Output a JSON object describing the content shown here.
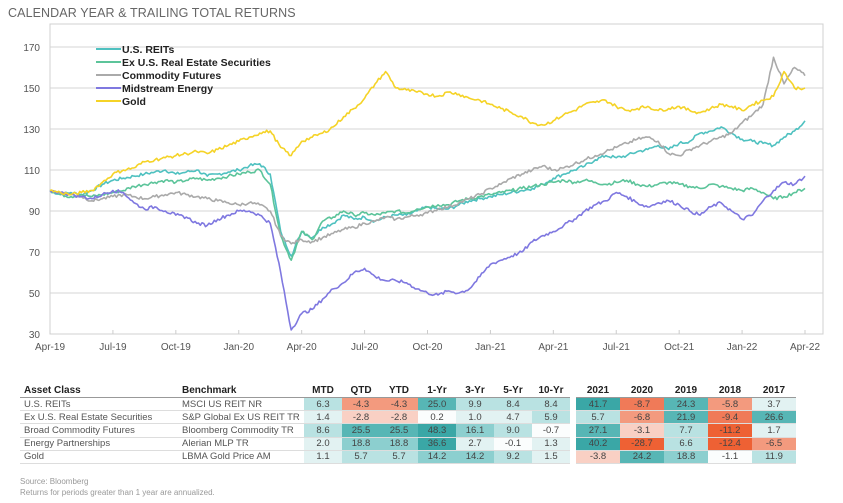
{
  "page": {
    "title": "CALENDAR YEAR & TRAILING TOTAL RETURNS",
    "source": "Source: Bloomberg",
    "note": "Returns for periods greater than 1 year are annualized."
  },
  "chart_data": {
    "type": "line",
    "title": "CALENDAR YEAR & TRAILING TOTAL RETURNS",
    "xlabel": "",
    "ylabel": "",
    "ylim": [
      30,
      175
    ],
    "yticks": [
      30,
      50,
      70,
      90,
      110,
      130,
      150,
      170
    ],
    "xticks": [
      "Apr-19",
      "Jul-19",
      "Oct-19",
      "Jan-20",
      "Apr-20",
      "Jul-20",
      "Oct-20",
      "Jan-21",
      "Apr-21",
      "Jul-21",
      "Oct-21",
      "Jan-22",
      "Apr-22"
    ],
    "grid": true,
    "legend": "top-left",
    "x_months": [
      0,
      0.5,
      1,
      1.5,
      2,
      2.5,
      3,
      3.5,
      4,
      4.5,
      5,
      5.5,
      6,
      6.5,
      7,
      7.5,
      8,
      8.5,
      9,
      9.5,
      10,
      10.5,
      11,
      11.5,
      12,
      12.5,
      13,
      13.5,
      14,
      14.5,
      15,
      15.5,
      16,
      16.5,
      17,
      17.5,
      18,
      18.5,
      19,
      19.5,
      20,
      20.5,
      21,
      21.5,
      22,
      22.5,
      23,
      23.5,
      24,
      24.5,
      25,
      25.5,
      26,
      26.5,
      27,
      27.5,
      28,
      28.5,
      29,
      29.5,
      30,
      30.5,
      31,
      31.5,
      32,
      32.5,
      33,
      33.5,
      34,
      34.5,
      35,
      35.5,
      36
    ],
    "series": [
      {
        "name": "U.S. REITs",
        "color": "#4fc1c0",
        "values": [
          100,
          98,
          99,
          98,
          100,
          103,
          105,
          106,
          107,
          108,
          109,
          110,
          108,
          109,
          110,
          107,
          108,
          109,
          110,
          112,
          113,
          108,
          80,
          68,
          80,
          77,
          82,
          84,
          88,
          86,
          87,
          85,
          87,
          88,
          88,
          90,
          92,
          91,
          91,
          93,
          95,
          96,
          97,
          98,
          99,
          100,
          101,
          103,
          106,
          108,
          110,
          112,
          115,
          117,
          116,
          117,
          119,
          120,
          122,
          120,
          123,
          124,
          128,
          129,
          131,
          128,
          125,
          124,
          123,
          122,
          126,
          129,
          134
        ]
      },
      {
        "name": "Ex U.S. Real Estate Securities",
        "color": "#5cc49a",
        "values": [
          100,
          98,
          97,
          98,
          97,
          98,
          99,
          100,
          102,
          103,
          104,
          105,
          104,
          105,
          106,
          105,
          106,
          107,
          108,
          109,
          110,
          103,
          78,
          66,
          80,
          76,
          85,
          87,
          90,
          88,
          89,
          88,
          89,
          90,
          89,
          91,
          92,
          93,
          93,
          95,
          96,
          97,
          98,
          99,
          100,
          101,
          102,
          103,
          104,
          105,
          104,
          105,
          104,
          103,
          104,
          105,
          103,
          102,
          103,
          104,
          103,
          102,
          101,
          103,
          102,
          101,
          100,
          101,
          99,
          96,
          97,
          99,
          101
        ]
      },
      {
        "name": "Commodity Futures",
        "color": "#aaaaaa",
        "values": [
          100,
          99,
          98,
          97,
          95,
          96,
          97,
          98,
          97,
          96,
          97,
          98,
          99,
          98,
          97,
          96,
          95,
          94,
          93,
          94,
          93,
          90,
          78,
          74,
          76,
          75,
          77,
          79,
          81,
          82,
          84,
          85,
          87,
          86,
          87,
          88,
          89,
          91,
          92,
          94,
          96,
          98,
          101,
          103,
          106,
          108,
          110,
          112,
          110,
          111,
          113,
          115,
          117,
          119,
          121,
          123,
          125,
          126,
          124,
          118,
          117,
          120,
          122,
          124,
          126,
          128,
          133,
          137,
          142,
          165,
          152,
          160,
          156
        ]
      },
      {
        "name": "Midstream Energy",
        "color": "#7f78e0",
        "values": [
          100,
          99,
          98,
          97,
          96,
          98,
          100,
          99,
          94,
          91,
          92,
          90,
          88,
          87,
          84,
          83,
          86,
          88,
          90,
          90,
          88,
          84,
          60,
          32,
          40,
          42,
          47,
          52,
          55,
          60,
          62,
          58,
          56,
          56,
          55,
          52,
          50,
          49,
          51,
          50,
          52,
          58,
          64,
          66,
          68,
          70,
          75,
          78,
          80,
          83,
          86,
          90,
          93,
          95,
          99,
          97,
          94,
          92,
          94,
          95,
          93,
          90,
          88,
          92,
          94,
          90,
          86,
          88,
          95,
          100,
          104,
          103,
          107
        ]
      },
      {
        "name": "Gold",
        "color": "#f5d327",
        "values": [
          100,
          99,
          98,
          99,
          100,
          104,
          108,
          110,
          111,
          114,
          115,
          116,
          117,
          118,
          119,
          118,
          120,
          122,
          124,
          126,
          128,
          129,
          121,
          117,
          124,
          126,
          128,
          131,
          136,
          140,
          145,
          152,
          158,
          150,
          149,
          148,
          147,
          146,
          148,
          147,
          145,
          144,
          142,
          140,
          138,
          136,
          133,
          132,
          134,
          137,
          139,
          142,
          143,
          144,
          141,
          139,
          140,
          141,
          139,
          140,
          141,
          139,
          138,
          140,
          142,
          141,
          139,
          142,
          144,
          146,
          158,
          150,
          150
        ]
      }
    ]
  },
  "table": {
    "headers": [
      "Asset Class",
      "Benchmark",
      "MTD",
      "QTD",
      "YTD",
      "1-Yr",
      "3-Yr",
      "5-Yr",
      "10-Yr",
      "2021",
      "2020",
      "2019",
      "2018",
      "2017"
    ],
    "rows": [
      {
        "asset": "U.S. REITs",
        "benchmark": "MSCI US REIT NR",
        "values": [
          "6.3",
          "-4.3",
          "-4.3",
          "25.0",
          "9.9",
          "8.4",
          "8.4",
          "41.7",
          "-8.7",
          "24.3",
          "-5.8",
          "3.7"
        ]
      },
      {
        "asset": "Ex U.S. Real Estate Securities",
        "benchmark": "S&P Global Ex US REIT TR",
        "values": [
          "1.4",
          "-2.8",
          "-2.8",
          "0.2",
          "1.0",
          "4.7",
          "5.9",
          "5.7",
          "-6.8",
          "21.9",
          "-9.4",
          "26.6"
        ]
      },
      {
        "asset": "Broad Commodity Futures",
        "benchmark": "Bloomberg Commodity TR",
        "values": [
          "8.6",
          "25.5",
          "25.5",
          "48.3",
          "16.1",
          "9.0",
          "-0.7",
          "27.1",
          "-3.1",
          "7.7",
          "-11.2",
          "1.7"
        ]
      },
      {
        "asset": "Energy Partnerships",
        "benchmark": "Alerian MLP TR",
        "values": [
          "2.0",
          "18.8",
          "18.8",
          "36.6",
          "2.7",
          "-0.1",
          "1.3",
          "40.2",
          "-28.7",
          "6.6",
          "-12.4",
          "-6.5"
        ]
      },
      {
        "asset": "Gold",
        "benchmark": "LBMA Gold Price AM",
        "values": [
          "1.1",
          "5.7",
          "5.7",
          "14.2",
          "14.2",
          "9.2",
          "1.5",
          "-3.8",
          "24.2",
          "18.8",
          "-1.1",
          "11.9"
        ]
      }
    ]
  }
}
